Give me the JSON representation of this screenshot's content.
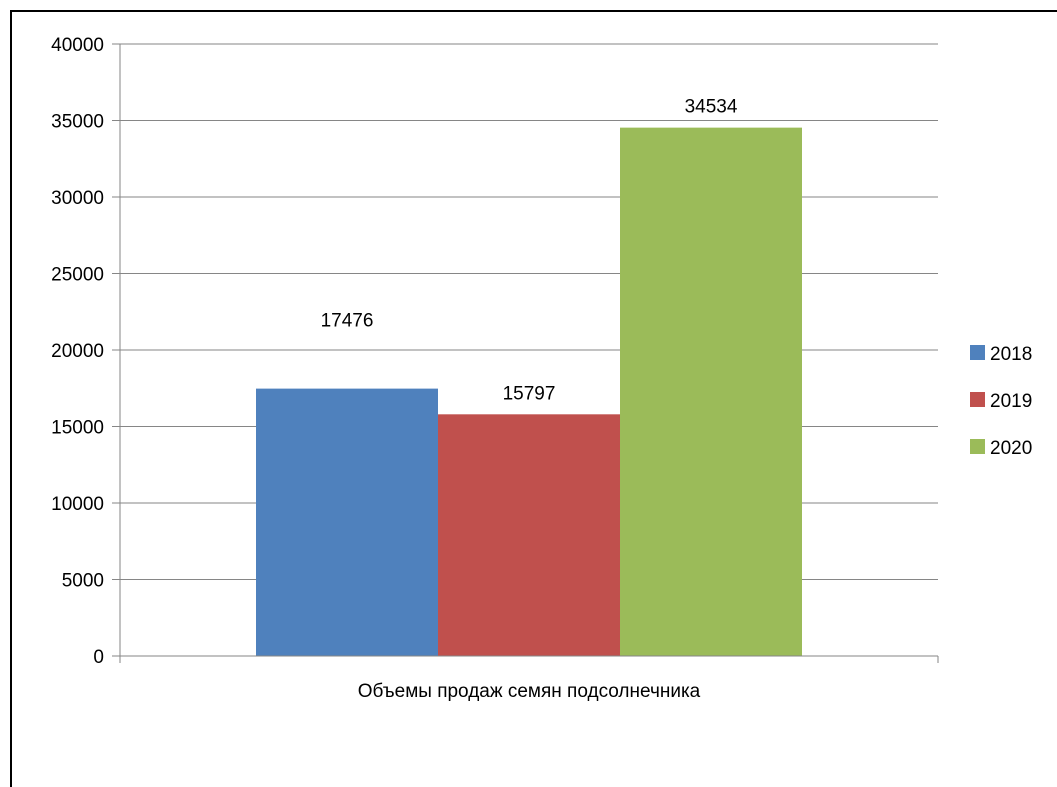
{
  "chart_data": {
    "type": "bar",
    "categories": [
      "Объемы продаж семян подсолнечника"
    ],
    "series": [
      {
        "name": "2018",
        "values": [
          17476
        ],
        "color": "#4F81BD"
      },
      {
        "name": "2019",
        "values": [
          15797
        ],
        "color": "#C0504D"
      },
      {
        "name": "2020",
        "values": [
          34534
        ],
        "color": "#9BBB59"
      }
    ],
    "ylim": [
      0,
      40000
    ],
    "yticks": [
      0,
      5000,
      10000,
      15000,
      20000,
      25000,
      30000,
      35000,
      40000
    ],
    "data_labels": [
      "17476",
      "15797",
      "34534"
    ],
    "grid": true,
    "legend_position": "right"
  }
}
